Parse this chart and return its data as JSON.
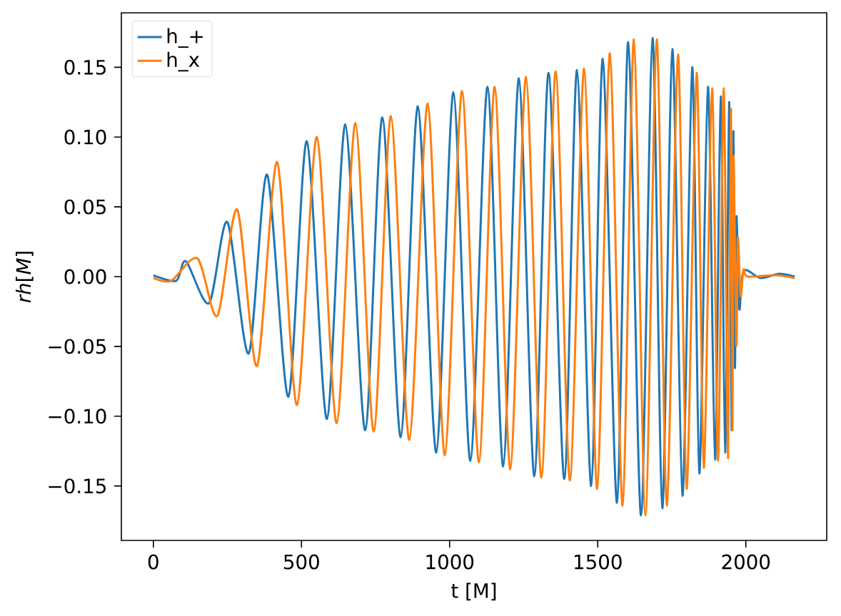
{
  "chart_data": {
    "type": "line",
    "xlabel": "t [M]",
    "ylabel": "*rh*[*M*]",
    "xlim": [
      -108,
      2273
    ],
    "ylim": [
      -0.189,
      0.189
    ],
    "xticks": [
      0,
      500,
      1000,
      1500,
      2000
    ],
    "yticks": [
      {
        "value": -0.15,
        "label": "−0.15"
      },
      {
        "value": -0.1,
        "label": "−0.10"
      },
      {
        "value": -0.05,
        "label": "−0.05"
      },
      {
        "value": 0,
        "label": "0.00"
      },
      {
        "value": 0.05,
        "label": "0.05"
      },
      {
        "value": 0.1,
        "label": "0.10"
      },
      {
        "value": 0.15,
        "label": "0.15"
      }
    ],
    "legend": "top left",
    "grid": false,
    "series": [
      {
        "name": "h_+",
        "color": "#1f77b4",
        "x": [
          0,
          77,
          110,
          188,
          250,
          322,
          384,
          456,
          518,
          586,
          648,
          715,
          773,
          835,
          893,
          955,
          1013,
          1070,
          1128,
          1181,
          1234,
          1286,
          1334,
          1387,
          1430,
          1478,
          1517,
          1565,
          1603,
          1646,
          1685,
          1718,
          1752,
          1786,
          1819,
          1843,
          1872,
          1896,
          1915,
          1930,
          1944,
          1952,
          1958,
          1963,
          1968,
          1978,
          1992,
          2050,
          2112,
          2165
        ],
        "values": [
          0.001,
          -0.003,
          0.011,
          -0.019,
          0.039,
          -0.055,
          0.073,
          -0.086,
          0.097,
          -0.102,
          0.109,
          -0.11,
          0.114,
          -0.115,
          0.122,
          -0.126,
          0.132,
          -0.132,
          0.136,
          -0.136,
          0.142,
          -0.143,
          0.146,
          -0.145,
          0.148,
          -0.15,
          0.156,
          -0.162,
          0.168,
          -0.171,
          0.171,
          -0.166,
          0.163,
          -0.157,
          0.15,
          -0.141,
          0.136,
          -0.131,
          0.129,
          -0.126,
          0.125,
          -0.11,
          0.104,
          -0.065,
          0.043,
          -0.023,
          0.004,
          -0.001,
          0.002,
          0.0
        ]
      },
      {
        "name": "h_x",
        "color": "#ff7f0e",
        "x": [
          0,
          60,
          149,
          216,
          283,
          350,
          418,
          485,
          552,
          619,
          682,
          744,
          802,
          864,
          926,
          984,
          1042,
          1099,
          1152,
          1205,
          1258,
          1310,
          1358,
          1406,
          1454,
          1498,
          1541,
          1584,
          1622,
          1661,
          1699,
          1733,
          1771,
          1800,
          1834,
          1858,
          1886,
          1906,
          1925,
          1940,
          1950,
          1955,
          1958,
          1968,
          1973,
          1982,
          1992,
          2006,
          2099,
          2165
        ],
        "values": [
          -0.001,
          -0.003,
          0.013,
          -0.028,
          0.048,
          -0.064,
          0.082,
          -0.092,
          0.1,
          -0.105,
          0.11,
          -0.111,
          0.115,
          -0.117,
          0.124,
          -0.128,
          0.133,
          -0.133,
          0.136,
          -0.138,
          0.143,
          -0.144,
          0.147,
          -0.146,
          0.149,
          -0.152,
          0.16,
          -0.164,
          0.17,
          -0.171,
          0.17,
          -0.164,
          0.159,
          -0.152,
          0.146,
          -0.137,
          0.135,
          -0.132,
          0.135,
          -0.13,
          0.12,
          -0.11,
          0.086,
          -0.049,
          0.028,
          -0.014,
          0.005,
          0.0,
          0.001,
          -0.001
        ]
      }
    ]
  }
}
